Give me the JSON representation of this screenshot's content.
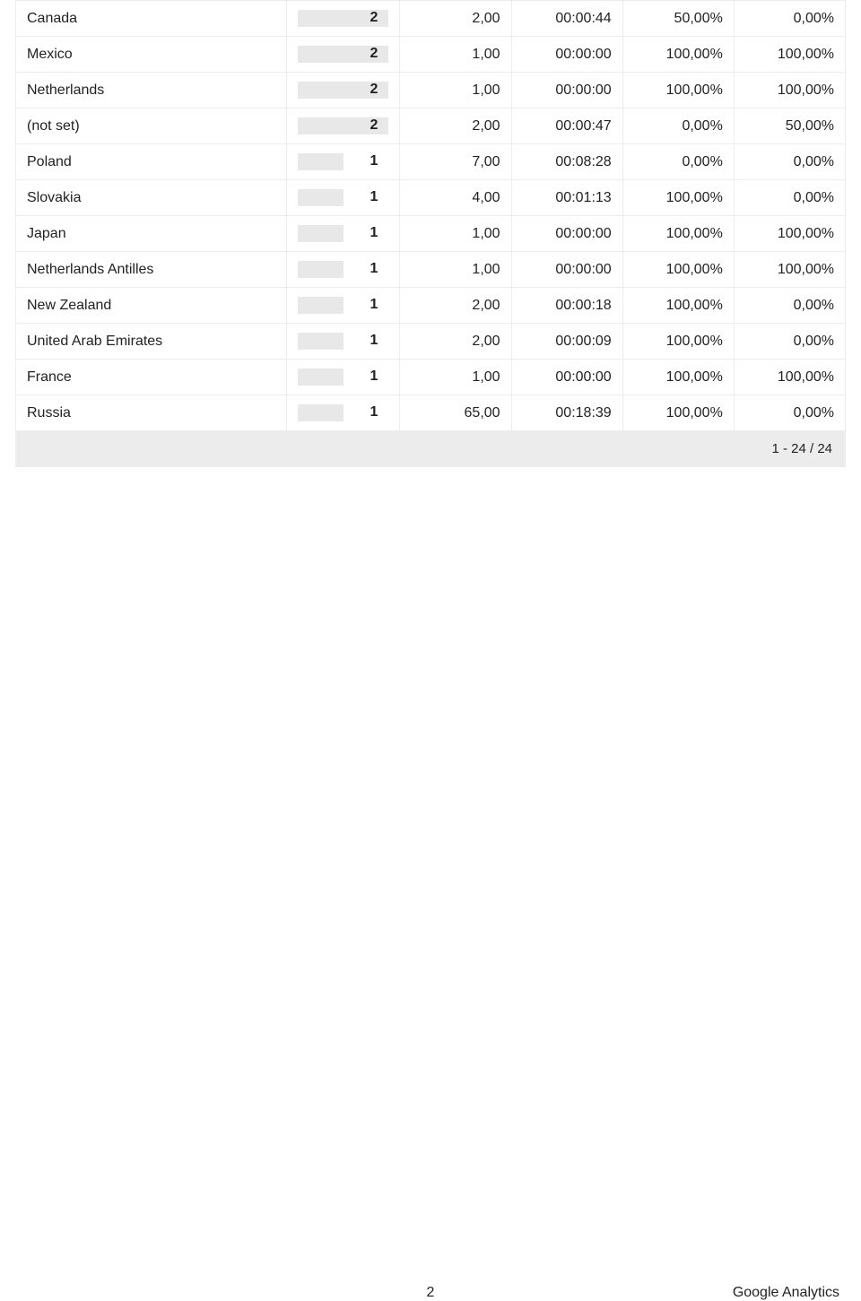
{
  "table": {
    "bar_fill_color": "#e8e8e8",
    "border_color": "#ececec",
    "footer_bg_color": "#ececec",
    "bar_max_value": 2,
    "rows": [
      {
        "country": "Canada",
        "bar_value": 2,
        "pages": "2,00",
        "duration": "00:00:44",
        "pct1": "50,00%",
        "pct2": "0,00%"
      },
      {
        "country": "Mexico",
        "bar_value": 2,
        "pages": "1,00",
        "duration": "00:00:00",
        "pct1": "100,00%",
        "pct2": "100,00%"
      },
      {
        "country": "Netherlands",
        "bar_value": 2,
        "pages": "1,00",
        "duration": "00:00:00",
        "pct1": "100,00%",
        "pct2": "100,00%"
      },
      {
        "country": "(not set)",
        "bar_value": 2,
        "pages": "2,00",
        "duration": "00:00:47",
        "pct1": "0,00%",
        "pct2": "50,00%"
      },
      {
        "country": "Poland",
        "bar_value": 1,
        "pages": "7,00",
        "duration": "00:08:28",
        "pct1": "0,00%",
        "pct2": "0,00%"
      },
      {
        "country": "Slovakia",
        "bar_value": 1,
        "pages": "4,00",
        "duration": "00:01:13",
        "pct1": "100,00%",
        "pct2": "0,00%"
      },
      {
        "country": "Japan",
        "bar_value": 1,
        "pages": "1,00",
        "duration": "00:00:00",
        "pct1": "100,00%",
        "pct2": "100,00%"
      },
      {
        "country": "Netherlands Antilles",
        "bar_value": 1,
        "pages": "1,00",
        "duration": "00:00:00",
        "pct1": "100,00%",
        "pct2": "100,00%"
      },
      {
        "country": "New Zealand",
        "bar_value": 1,
        "pages": "2,00",
        "duration": "00:00:18",
        "pct1": "100,00%",
        "pct2": "0,00%"
      },
      {
        "country": "United Arab Emirates",
        "bar_value": 1,
        "pages": "2,00",
        "duration": "00:00:09",
        "pct1": "100,00%",
        "pct2": "0,00%"
      },
      {
        "country": "France",
        "bar_value": 1,
        "pages": "1,00",
        "duration": "00:00:00",
        "pct1": "100,00%",
        "pct2": "100,00%"
      },
      {
        "country": "Russia",
        "bar_value": 1,
        "pages": "65,00",
        "duration": "00:18:39",
        "pct1": "100,00%",
        "pct2": "0,00%"
      }
    ],
    "pagination": "1 - 24 / 24"
  },
  "footer": {
    "page_number": "2",
    "brand": "Google Analytics"
  }
}
